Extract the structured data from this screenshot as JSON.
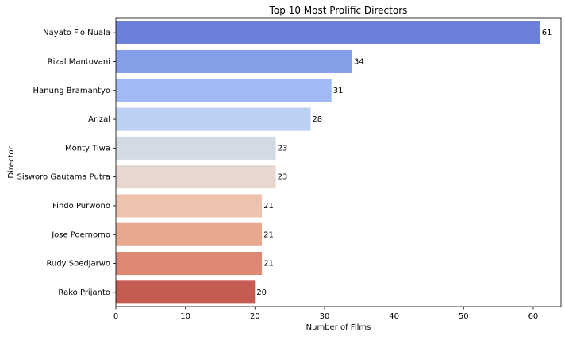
{
  "chart_data": {
    "type": "bar",
    "orientation": "horizontal",
    "title": "Top 10 Most Prolific Directors",
    "xlabel": "Number of Films",
    "ylabel": "Director",
    "categories": [
      "Nayato Fio Nuala",
      "Rizal Mantovani",
      "Hanung Bramantyo",
      "Arizal",
      "Monty Tiwa",
      "Sisworo Gautama Putra",
      "Findo Purwono",
      "Jose Poernomo",
      "Rudy Soedjarwo",
      "Rako Prijanto"
    ],
    "values": [
      61,
      34,
      31,
      28,
      23,
      23,
      21,
      21,
      21,
      20
    ],
    "bar_colors": [
      "#6a80d9",
      "#849fe7",
      "#a1baf5",
      "#bcd0f3",
      "#d4d9e6",
      "#e6d7cf",
      "#edc3ae",
      "#e8a88e",
      "#dc8873",
      "#c45c52"
    ],
    "xlim": [
      0,
      64
    ],
    "xticks": [
      0,
      10,
      20,
      30,
      40,
      50,
      60
    ],
    "data_labels": true,
    "grid": false,
    "legend": "none"
  }
}
